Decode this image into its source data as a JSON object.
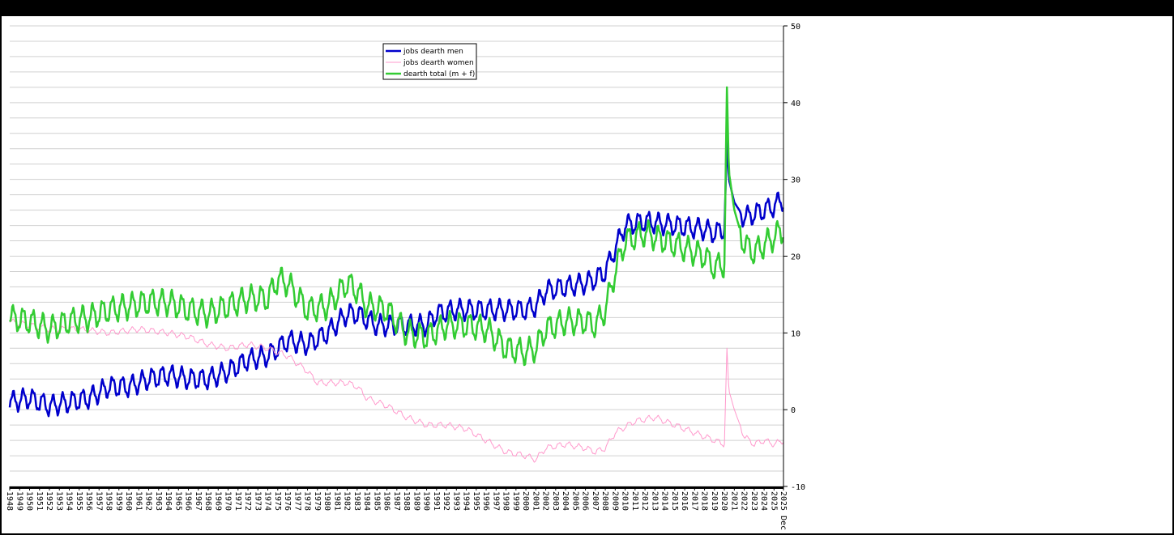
{
  "chart_data": {
    "type": "line",
    "title": "",
    "xlabel": "",
    "ylabel": "",
    "ylim": [
      -10,
      50
    ],
    "y_ticks": [
      -10,
      0,
      10,
      20,
      30,
      40,
      50
    ],
    "x_range": [
      1948,
      2025.95
    ],
    "x_tick_labels": [
      "1948",
      "1949",
      "1950",
      "1951",
      "1952",
      "1953",
      "1954",
      "1955",
      "1956",
      "1957",
      "1958",
      "1959",
      "1960",
      "1961",
      "1962",
      "1963",
      "1964",
      "1965",
      "1966",
      "1967",
      "1968",
      "1969",
      "1970",
      "1971",
      "1972",
      "1973",
      "1974",
      "1975",
      "1976",
      "1977",
      "1978",
      "1979",
      "1980",
      "1981",
      "1982",
      "1983",
      "1984",
      "1985",
      "1986",
      "1987",
      "1988",
      "1989",
      "1990",
      "1991",
      "1992",
      "1993",
      "1994",
      "1995",
      "1996",
      "1997",
      "1998",
      "1999",
      "2000",
      "2001",
      "2002",
      "2003",
      "2004",
      "2005",
      "2006",
      "2007",
      "2008",
      "2009",
      "2010",
      "2011",
      "2012",
      "2013",
      "2014",
      "2015",
      "2016",
      "2017",
      "2018",
      "2019",
      "2020",
      "2021",
      "2022",
      "2023",
      "2024",
      "2025",
      "2025 Dec"
    ],
    "grid": true,
    "legend_position": "top-center",
    "series": [
      {
        "name": "jobs dearth men",
        "color": "#0000cc",
        "width": 2.5,
        "amplitude": 1.2,
        "anchors": [
          [
            1948,
            1.0
          ],
          [
            1950,
            1.5
          ],
          [
            1952,
            0.5
          ],
          [
            1954,
            1.0
          ],
          [
            1956,
            1.5
          ],
          [
            1958,
            3.0
          ],
          [
            1960,
            3.0
          ],
          [
            1962,
            4.0
          ],
          [
            1964,
            4.5
          ],
          [
            1966,
            4.0
          ],
          [
            1968,
            4.0
          ],
          [
            1970,
            5.0
          ],
          [
            1972,
            6.5
          ],
          [
            1974,
            7.0
          ],
          [
            1975,
            8.0
          ],
          [
            1976,
            9.0
          ],
          [
            1978,
            8.5
          ],
          [
            1980,
            10.0
          ],
          [
            1982,
            12.5
          ],
          [
            1983,
            12.5
          ],
          [
            1985,
            11.0
          ],
          [
            1987,
            11.0
          ],
          [
            1988,
            11.0
          ],
          [
            1990,
            11.0
          ],
          [
            1991,
            12.5
          ],
          [
            1993,
            13.0
          ],
          [
            1995,
            13.0
          ],
          [
            1997,
            13.0
          ],
          [
            1999,
            13.0
          ],
          [
            2000,
            13.0
          ],
          [
            2001,
            13.5
          ],
          [
            2002,
            15.5
          ],
          [
            2004,
            16.0
          ],
          [
            2006,
            16.5
          ],
          [
            2007,
            17.0
          ],
          [
            2008,
            18.0
          ],
          [
            2009,
            21.0
          ],
          [
            2010,
            24.0
          ],
          [
            2012,
            24.5
          ],
          [
            2015,
            24.0
          ],
          [
            2018,
            23.5
          ],
          [
            2019,
            23.0
          ],
          [
            2020.0,
            23.5
          ],
          [
            2020.25,
            35.0
          ],
          [
            2020.45,
            30.0
          ],
          [
            2021,
            27.0
          ],
          [
            2022,
            25.0
          ],
          [
            2023,
            25.5
          ],
          [
            2024,
            26.0
          ],
          [
            2025,
            26.5
          ],
          [
            2025.95,
            27.5
          ]
        ]
      },
      {
        "name": "jobs dearth women",
        "color": "#ff99cc",
        "width": 1.0,
        "amplitude": 0.35,
        "anchors": [
          [
            1948,
            11.5
          ],
          [
            1950,
            11.0
          ],
          [
            1952,
            10.5
          ],
          [
            1955,
            10.5
          ],
          [
            1958,
            10.0
          ],
          [
            1961,
            10.5
          ],
          [
            1964,
            10.0
          ],
          [
            1966,
            9.5
          ],
          [
            1968,
            8.5
          ],
          [
            1970,
            8.0
          ],
          [
            1972,
            8.5
          ],
          [
            1974,
            8.0
          ],
          [
            1975,
            7.5
          ],
          [
            1976,
            7.0
          ],
          [
            1978,
            5.0
          ],
          [
            1979,
            3.5
          ],
          [
            1982,
            3.5
          ],
          [
            1983,
            3.0
          ],
          [
            1984,
            1.5
          ],
          [
            1986,
            0.5
          ],
          [
            1988,
            -1.0
          ],
          [
            1990,
            -2.0
          ],
          [
            1992,
            -2.0
          ],
          [
            1994,
            -2.5
          ],
          [
            1996,
            -4.0
          ],
          [
            1998,
            -5.5
          ],
          [
            2000,
            -6.0
          ],
          [
            2001,
            -6.5
          ],
          [
            2002,
            -5.0
          ],
          [
            2004,
            -4.5
          ],
          [
            2006,
            -5.0
          ],
          [
            2007,
            -5.5
          ],
          [
            2008,
            -5.0
          ],
          [
            2009,
            -3.0
          ],
          [
            2011,
            -1.5
          ],
          [
            2013,
            -1.0
          ],
          [
            2015,
            -2.0
          ],
          [
            2017,
            -3.0
          ],
          [
            2019,
            -4.0
          ],
          [
            2020.0,
            -4.5
          ],
          [
            2020.25,
            8.0
          ],
          [
            2020.45,
            2.5
          ],
          [
            2021,
            0.0
          ],
          [
            2022,
            -3.5
          ],
          [
            2023,
            -4.5
          ],
          [
            2024,
            -4.0
          ],
          [
            2025,
            -4.5
          ],
          [
            2025.95,
            -4.0
          ]
        ]
      },
      {
        "name": "dearth total (m + f)",
        "color": "#33cc33",
        "width": 2.5,
        "amplitude": 1.5,
        "anchors": [
          [
            1948,
            12.0
          ],
          [
            1950,
            11.5
          ],
          [
            1952,
            10.5
          ],
          [
            1954,
            11.5
          ],
          [
            1956,
            12.0
          ],
          [
            1958,
            13.0
          ],
          [
            1960,
            13.5
          ],
          [
            1962,
            14.0
          ],
          [
            1964,
            14.0
          ],
          [
            1966,
            13.0
          ],
          [
            1968,
            12.5
          ],
          [
            1970,
            13.5
          ],
          [
            1972,
            14.5
          ],
          [
            1974,
            14.5
          ],
          [
            1975,
            17.0
          ],
          [
            1976,
            16.5
          ],
          [
            1978,
            13.0
          ],
          [
            1980,
            13.5
          ],
          [
            1982,
            16.5
          ],
          [
            1983,
            15.5
          ],
          [
            1984,
            13.5
          ],
          [
            1986,
            13.0
          ],
          [
            1988,
            10.0
          ],
          [
            1990,
            9.5
          ],
          [
            1992,
            11.0
          ],
          [
            1994,
            11.0
          ],
          [
            1996,
            10.5
          ],
          [
            1998,
            8.0
          ],
          [
            2000,
            7.5
          ],
          [
            2001,
            8.0
          ],
          [
            2002,
            10.5
          ],
          [
            2004,
            11.5
          ],
          [
            2006,
            11.5
          ],
          [
            2007,
            11.0
          ],
          [
            2008,
            13.0
          ],
          [
            2009,
            18.0
          ],
          [
            2010,
            22.0
          ],
          [
            2012,
            23.0
          ],
          [
            2015,
            21.5
          ],
          [
            2018,
            20.0
          ],
          [
            2019,
            18.5
          ],
          [
            2020.0,
            19.0
          ],
          [
            2020.25,
            42.0
          ],
          [
            2020.45,
            31.0
          ],
          [
            2021,
            26.0
          ],
          [
            2022,
            21.5
          ],
          [
            2023,
            20.5
          ],
          [
            2024,
            21.5
          ],
          [
            2025,
            22.5
          ],
          [
            2025.95,
            23.5
          ]
        ]
      }
    ]
  }
}
